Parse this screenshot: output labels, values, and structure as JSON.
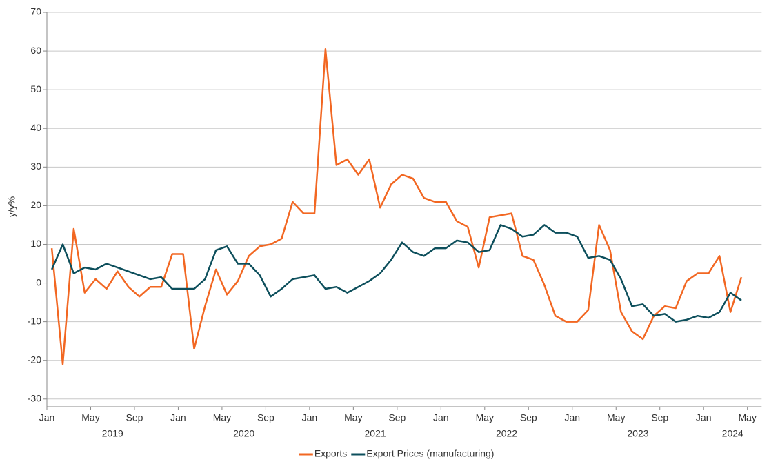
{
  "chart_data": {
    "type": "line",
    "y_label": "y/y%",
    "x": [
      "2019-01",
      "2019-02",
      "2019-03",
      "2019-04",
      "2019-05",
      "2019-06",
      "2019-07",
      "2019-08",
      "2019-09",
      "2019-10",
      "2019-11",
      "2019-12",
      "2020-01",
      "2020-02",
      "2020-03",
      "2020-04",
      "2020-05",
      "2020-06",
      "2020-07",
      "2020-08",
      "2020-09",
      "2020-10",
      "2020-11",
      "2020-12",
      "2021-01",
      "2021-02",
      "2021-03",
      "2021-04",
      "2021-05",
      "2021-06",
      "2021-07",
      "2021-08",
      "2021-09",
      "2021-10",
      "2021-11",
      "2021-12",
      "2022-01",
      "2022-02",
      "2022-03",
      "2022-04",
      "2022-05",
      "2022-06",
      "2022-07",
      "2022-08",
      "2022-09",
      "2022-10",
      "2022-11",
      "2022-12",
      "2023-01",
      "2023-02",
      "2023-03",
      "2023-04",
      "2023-05",
      "2023-06",
      "2023-07",
      "2023-08",
      "2023-09",
      "2023-10",
      "2023-11",
      "2023-12",
      "2024-01",
      "2024-02",
      "2024-03",
      "2024-04"
    ],
    "series": [
      {
        "name": "Exports",
        "color": "#f26722",
        "values": [
          9,
          -21,
          14,
          -2.5,
          1,
          -1.5,
          3,
          -1,
          -3.5,
          -1,
          -1,
          7.5,
          7.5,
          -17,
          -6,
          3.5,
          -3,
          0.5,
          7,
          9.5,
          10,
          11.5,
          21,
          18,
          18,
          60.5,
          30.5,
          32,
          28,
          32,
          19.5,
          25.5,
          28,
          27,
          22,
          21,
          21,
          16,
          14.5,
          4,
          17,
          17.5,
          18,
          7,
          6,
          -0.5,
          -8.5,
          -10,
          -10,
          -7,
          15,
          8.5,
          -7.5,
          -12.5,
          -14.5,
          -8.5,
          -6,
          -6.5,
          0.5,
          2.5,
          2.5,
          7,
          -7.5,
          1.5
        ]
      },
      {
        "name": "Export Prices (manufacturing)",
        "color": "#0d4f5c",
        "values": [
          3.5,
          10,
          2.5,
          4,
          3.5,
          5,
          4,
          3,
          2,
          1,
          1.5,
          -1.5,
          -1.5,
          -1.5,
          1,
          8.5,
          9.5,
          5,
          5,
          2,
          -3.5,
          -1.5,
          1,
          1.5,
          2,
          -1.5,
          -1,
          -2.5,
          -1,
          0.5,
          2.5,
          6,
          10.5,
          8,
          7,
          9,
          9,
          11,
          10.5,
          8,
          8.5,
          15,
          14,
          12,
          12.5,
          15,
          13,
          13,
          12,
          6.5,
          7,
          6,
          1,
          -6,
          -5.5,
          -8.5,
          -8,
          -10,
          -9.5,
          -8.5,
          -9,
          -7.5,
          -2.5,
          -4.5
        ]
      }
    ],
    "xticks": [
      {
        "value": "2019-01",
        "label": "Jan"
      },
      {
        "value": "2019-05",
        "label": "May"
      },
      {
        "value": "2019-09",
        "label": "Sep"
      },
      {
        "value": "2020-01",
        "label": "Jan"
      },
      {
        "value": "2020-05",
        "label": "May"
      },
      {
        "value": "2020-09",
        "label": "Sep"
      },
      {
        "value": "2021-01",
        "label": "Jan"
      },
      {
        "value": "2021-05",
        "label": "May"
      },
      {
        "value": "2021-09",
        "label": "Sep"
      },
      {
        "value": "2022-01",
        "label": "Jan"
      },
      {
        "value": "2022-05",
        "label": "May"
      },
      {
        "value": "2022-09",
        "label": "Sep"
      },
      {
        "value": "2023-01",
        "label": "Jan"
      },
      {
        "value": "2023-05",
        "label": "May"
      },
      {
        "value": "2023-09",
        "label": "Sep"
      },
      {
        "value": "2024-01",
        "label": "Jan"
      },
      {
        "value": "2024-05",
        "label": "May"
      }
    ],
    "years": [
      "2019",
      "2020",
      "2021",
      "2022",
      "2023",
      "2024"
    ],
    "ylim": [
      -32,
      70
    ],
    "yticks": [
      -30,
      -20,
      -10,
      0,
      10,
      20,
      30,
      40,
      50,
      60,
      70
    ],
    "grid": true,
    "legend": "bottom"
  }
}
